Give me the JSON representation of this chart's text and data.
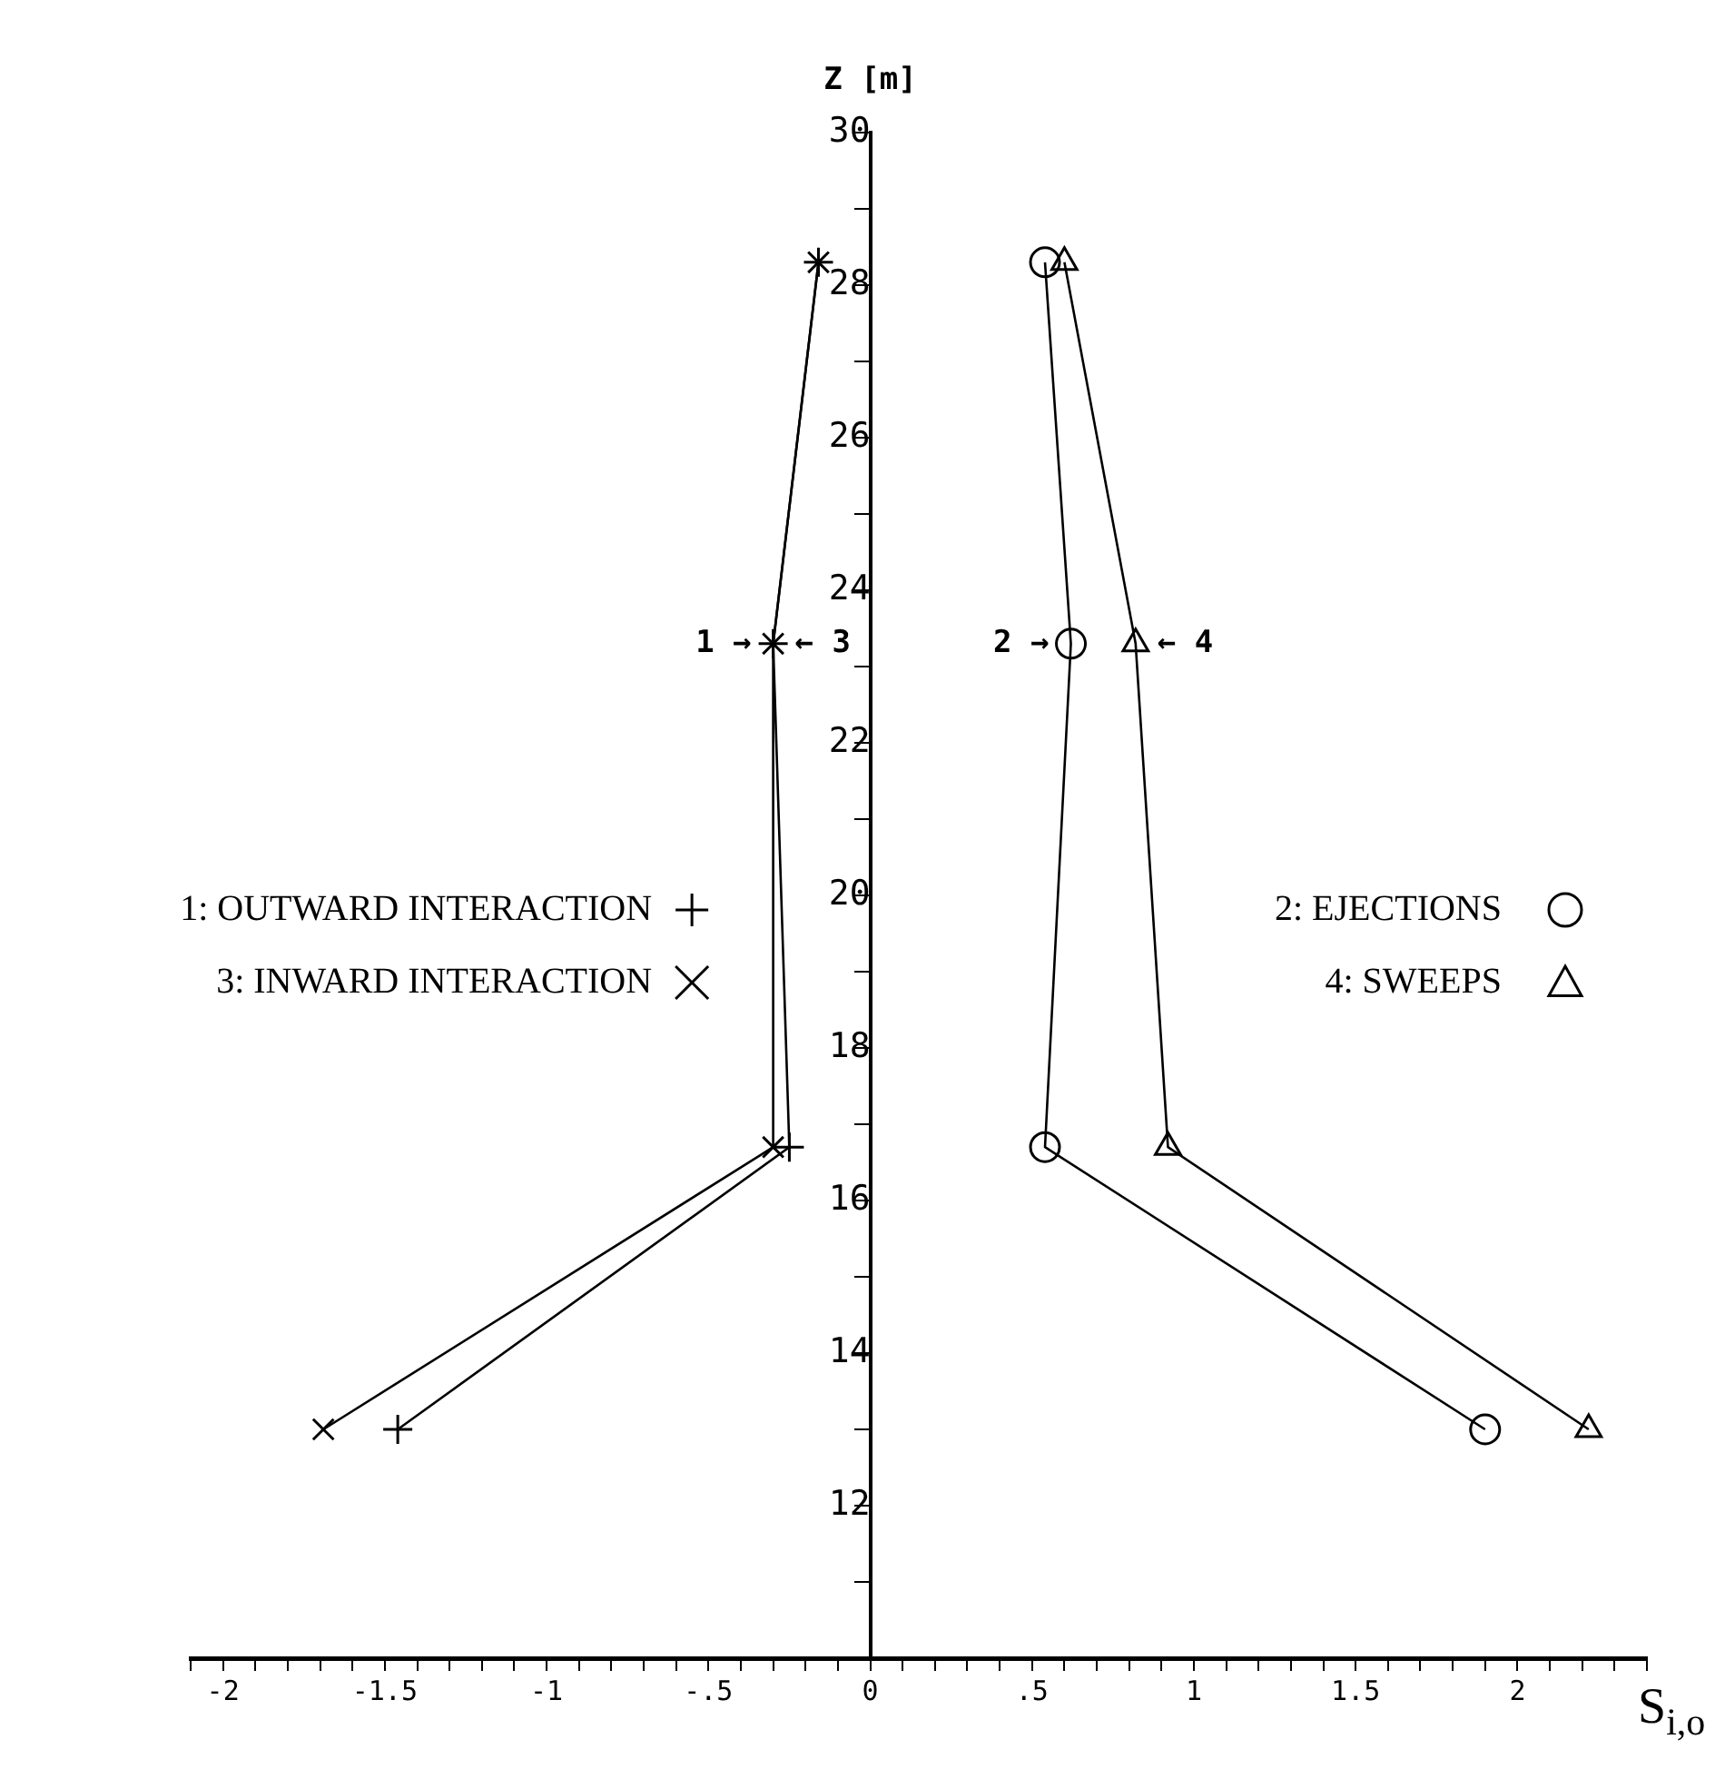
{
  "chart_data": {
    "type": "line",
    "xlabel": "S$_{i,o}$",
    "ylabel": "Z [m]",
    "xlim": [
      -2.1,
      2.4
    ],
    "ylim": [
      10,
      30
    ],
    "xticks": [
      {
        "value": -2.1,
        "label": null
      },
      {
        "value": -2,
        "label": "-2"
      },
      {
        "value": -1.9,
        "label": null
      },
      {
        "value": -1.8,
        "label": null
      },
      {
        "value": -1.7,
        "label": null
      },
      {
        "value": -1.6,
        "label": null
      },
      {
        "value": -1.5,
        "label": "-1.5"
      },
      {
        "value": -1.4,
        "label": null
      },
      {
        "value": -1.3,
        "label": null
      },
      {
        "value": -1.2,
        "label": null
      },
      {
        "value": -1.1,
        "label": null
      },
      {
        "value": -1,
        "label": "-1"
      },
      {
        "value": -0.9,
        "label": null
      },
      {
        "value": -0.8,
        "label": null
      },
      {
        "value": -0.7,
        "label": null
      },
      {
        "value": -0.6,
        "label": null
      },
      {
        "value": -0.5,
        "label": "-.5"
      },
      {
        "value": -0.4,
        "label": null
      },
      {
        "value": -0.3,
        "label": null
      },
      {
        "value": -0.2,
        "label": null
      },
      {
        "value": -0.1,
        "label": null
      },
      {
        "value": 0,
        "label": "0"
      },
      {
        "value": 0.1,
        "label": null
      },
      {
        "value": 0.2,
        "label": null
      },
      {
        "value": 0.3,
        "label": null
      },
      {
        "value": 0.4,
        "label": null
      },
      {
        "value": 0.5,
        "label": ".5"
      },
      {
        "value": 0.6,
        "label": null
      },
      {
        "value": 0.7,
        "label": null
      },
      {
        "value": 0.8,
        "label": null
      },
      {
        "value": 0.9,
        "label": null
      },
      {
        "value": 1,
        "label": "1"
      },
      {
        "value": 1.1,
        "label": null
      },
      {
        "value": 1.2,
        "label": null
      },
      {
        "value": 1.3,
        "label": null
      },
      {
        "value": 1.4,
        "label": null
      },
      {
        "value": 1.5,
        "label": "1.5"
      },
      {
        "value": 1.6,
        "label": null
      },
      {
        "value": 1.7,
        "label": null
      },
      {
        "value": 1.8,
        "label": null
      },
      {
        "value": 1.9,
        "label": null
      },
      {
        "value": 2,
        "label": "2"
      },
      {
        "value": 2.1,
        "label": null
      },
      {
        "value": 2.2,
        "label": null
      },
      {
        "value": 2.3,
        "label": null
      },
      {
        "value": 2.4,
        "label": null
      }
    ],
    "yticks": [
      {
        "value": 11,
        "label": null
      },
      12,
      {
        "value": 13,
        "label": null
      },
      14,
      {
        "value": 15,
        "label": null
      },
      16,
      {
        "value": 17,
        "label": null
      },
      18,
      {
        "value": 19,
        "label": null
      },
      20,
      {
        "value": 21,
        "label": null
      },
      22,
      {
        "value": 23,
        "label": null
      },
      24,
      {
        "value": 25,
        "label": null
      },
      26,
      {
        "value": 27,
        "label": null
      },
      28,
      {
        "value": 29,
        "label": null
      },
      30
    ],
    "legend": "center",
    "line_style": "solid",
    "series": [
      {
        "name": "1: OUTWARD INTERACTION",
        "color": "#000000",
        "marker": "cross",
        "x": [
          -1.46,
          -0.25,
          -0.3,
          -0.16
        ],
        "values": [
          13,
          16.7,
          23.3,
          28.3
        ]
      },
      {
        "name": "2: EJECTIONS",
        "color": "#000000",
        "marker": "circle",
        "x": [
          1.9,
          0.54,
          0.62,
          0.54
        ],
        "values": [
          13,
          16.7,
          23.3,
          28.3
        ]
      },
      {
        "name": "3: INWARD INTERACTION",
        "color": "#000000",
        "marker": "x",
        "x": [
          -1.69,
          -0.3,
          -0.3,
          -0.16
        ],
        "values": [
          13,
          16.7,
          23.3,
          28.3
        ]
      },
      {
        "name": "4: SWEEPS",
        "color": "#000000",
        "marker": "triangle",
        "x": [
          2.22,
          0.92,
          0.82,
          0.6
        ],
        "values": [
          13,
          16.7,
          23.3,
          28.3
        ]
      }
    ],
    "annotations": [
      {
        "text": "1 →",
        "x": -0.3,
        "y": 23.3
      },
      {
        "text": "← 3",
        "x": -0.3,
        "y": 23.3
      },
      {
        "text": "2 →",
        "x": 0.62,
        "y": 23.3
      },
      {
        "text": "← 4",
        "x": 0.82,
        "y": 23.3
      }
    ]
  }
}
